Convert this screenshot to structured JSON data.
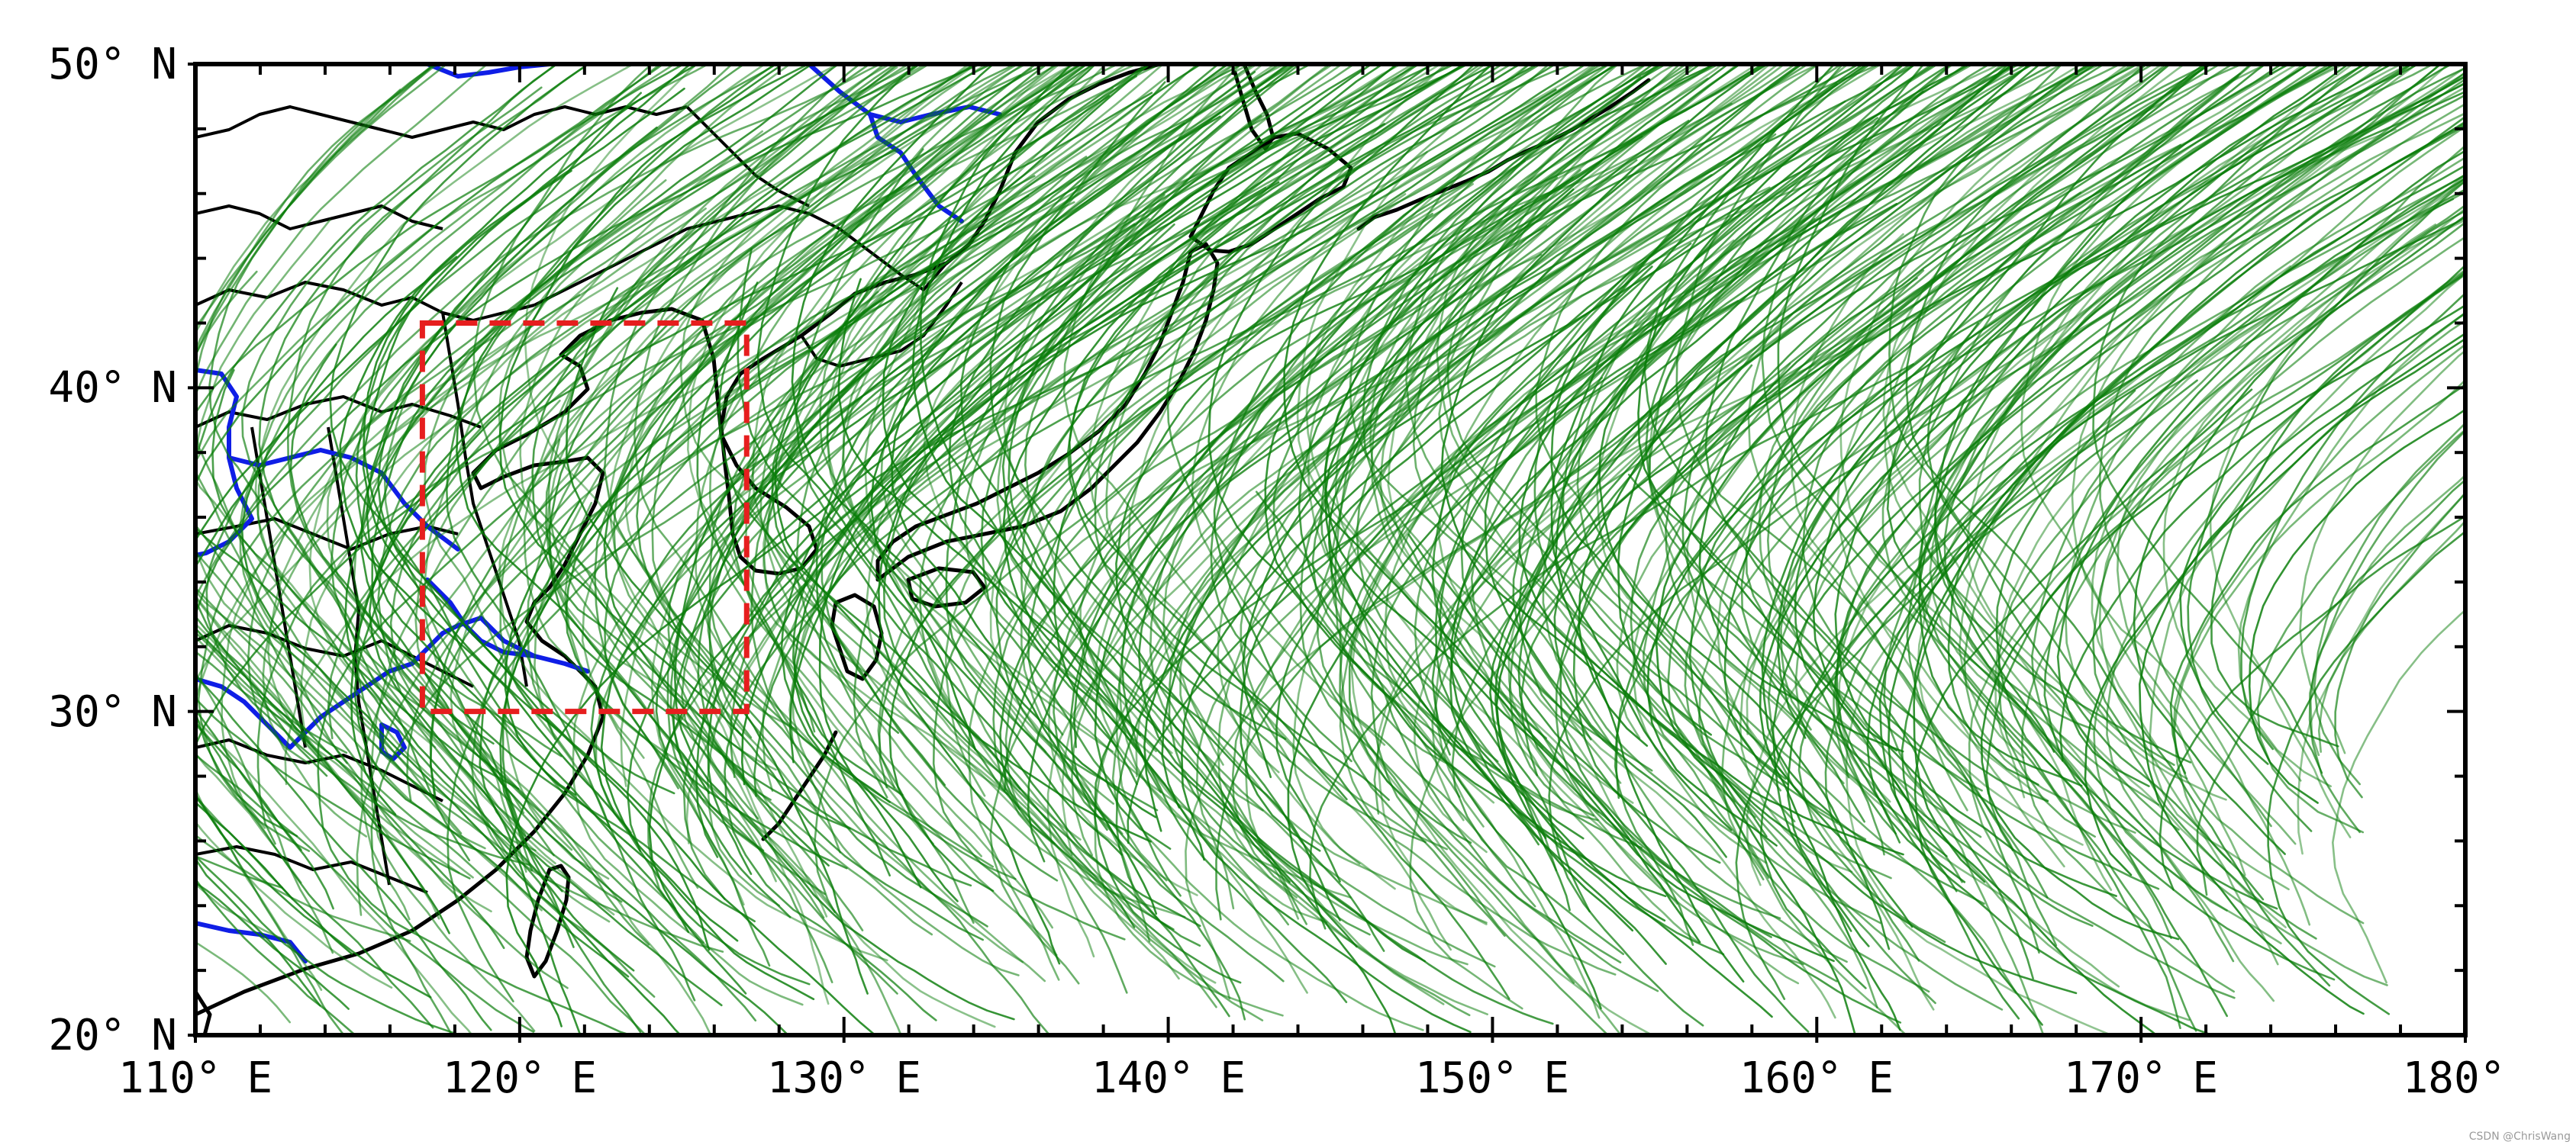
{
  "map": {
    "lon_range": [
      110,
      180
    ],
    "lat_range": [
      20,
      50
    ],
    "x_tick_labels": [
      {
        "value": 110,
        "label": "110° E"
      },
      {
        "value": 120,
        "label": "120° E"
      },
      {
        "value": 130,
        "label": "130° E"
      },
      {
        "value": 140,
        "label": "140° E"
      },
      {
        "value": 150,
        "label": "150° E"
      },
      {
        "value": 160,
        "label": "160° E"
      },
      {
        "value": 170,
        "label": "170° E"
      },
      {
        "value": 180,
        "label": "180°"
      }
    ],
    "y_tick_labels": [
      {
        "value": 20,
        "label": "20° N"
      },
      {
        "value": 30,
        "label": "30° N"
      },
      {
        "value": 40,
        "label": "40° N"
      },
      {
        "value": 50,
        "label": "50° N"
      }
    ],
    "minor_tick_step_deg": 2,
    "colors": {
      "tracks": "#0a7d0a",
      "coastline": "#000000",
      "rivers": "#0f1ee6",
      "study_box": "#e61e1e",
      "frame": "#000000"
    },
    "study_box": {
      "lon_min": 117,
      "lon_max": 127,
      "lat_min": 30,
      "lat_max": 42,
      "style": "dashed"
    },
    "watermark": "CSDN @ChrisWang"
  }
}
